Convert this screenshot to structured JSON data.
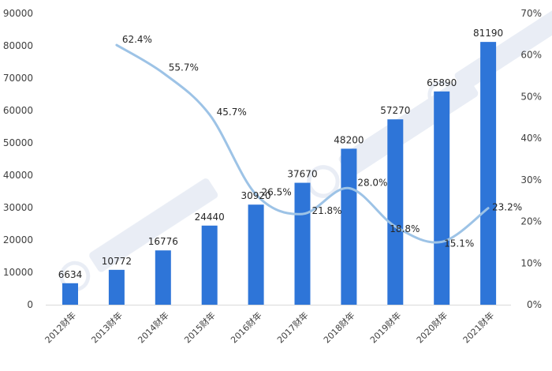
{
  "chart_data": {
    "type": "bar",
    "categories": [
      "2012财年",
      "2013财年",
      "2014财年",
      "2015财年",
      "2016财年",
      "2017财年",
      "2018财年",
      "2019财年",
      "2020财年",
      "2021财年"
    ],
    "series": [
      {
        "type": "bar",
        "axis": "left",
        "values": [
          6634,
          10772,
          16776,
          24440,
          30920,
          37670,
          48200,
          57270,
          65890,
          81190
        ],
        "labels": [
          "6634",
          "10772",
          "16776",
          "24440",
          "30920",
          "37670",
          "48200",
          "57270",
          "65890",
          "81190"
        ],
        "color": "#2e75d8"
      },
      {
        "type": "line",
        "axis": "right",
        "values": [
          null,
          62.4,
          55.7,
          45.7,
          26.5,
          21.8,
          28.0,
          18.8,
          15.1,
          23.2
        ],
        "labels": [
          "",
          "62.4%",
          "55.7%",
          "45.7%",
          "26.5%",
          "21.8%",
          "28.0%",
          "18.8%",
          "15.1%",
          "23.2%"
        ],
        "color": "#9dc3e6"
      }
    ],
    "y_left": {
      "range": [
        0,
        90000
      ],
      "ticks": [
        "0",
        "10000",
        "20000",
        "30000",
        "40000",
        "50000",
        "60000",
        "70000",
        "80000",
        "90000"
      ]
    },
    "y_right": {
      "range": [
        0,
        70
      ],
      "ticks": [
        "0%",
        "10%",
        "20%",
        "30%",
        "40%",
        "50%",
        "60%",
        "70%"
      ]
    },
    "grid": false,
    "legend": "bottom"
  }
}
